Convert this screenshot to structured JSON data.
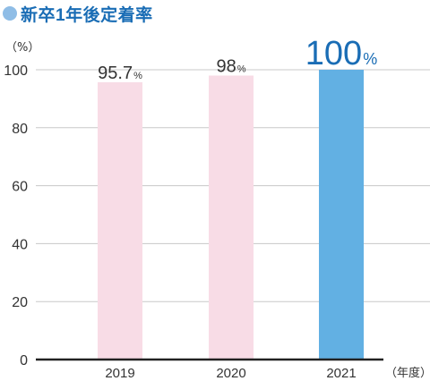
{
  "title": "新卒1年後定着率",
  "colors": {
    "title_text": "#1a6db5",
    "title_dot": "#8fbde6",
    "bar_default": "#f8dce6",
    "bar_highlight": "#62b0e3",
    "label_default": "#333333",
    "label_highlight": "#1a6db5",
    "grid": "#c8c8c8",
    "axis": "#222222"
  },
  "chart_data": {
    "type": "bar",
    "categories": [
      "2019",
      "2020",
      "2021"
    ],
    "values": [
      95.7,
      98,
      100
    ],
    "value_labels": [
      {
        "number": "95.7",
        "unit": "%"
      },
      {
        "number": "98",
        "unit": "%"
      },
      {
        "number": "100",
        "unit": "%"
      }
    ],
    "highlight_index": 2,
    "ylabel": "（%）",
    "xlabel": "（年度）",
    "ylim": [
      0,
      100
    ],
    "yticks": [
      0,
      20,
      40,
      60,
      80,
      100
    ],
    "grid": true
  }
}
